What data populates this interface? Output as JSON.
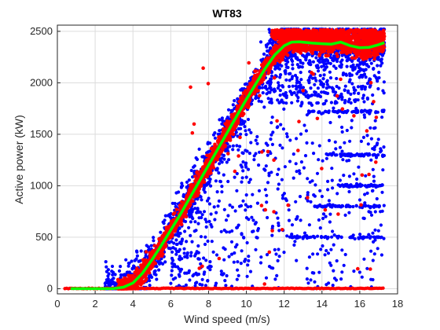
{
  "chart_data": {
    "type": "scatter",
    "title": "WT83",
    "xlabel": "Wind speed (m/s)",
    "ylabel": "Active power (kW)",
    "xlim": [
      0,
      18
    ],
    "ylim": [
      -50,
      2560
    ],
    "xticks": [
      0,
      2,
      4,
      6,
      8,
      10,
      12,
      14,
      16,
      18
    ],
    "yticks": [
      0,
      500,
      1000,
      1500,
      2000,
      2500
    ],
    "grid": true,
    "colors": {
      "blue": "#0000ff",
      "red": "#ff0000",
      "green": "#00ff00"
    },
    "fitted_curve": [
      [
        0.7,
        0
      ],
      [
        2,
        0
      ],
      [
        3,
        2
      ],
      [
        3.5,
        15
      ],
      [
        4,
        55
      ],
      [
        4.5,
        150
      ],
      [
        5,
        280
      ],
      [
        5.5,
        420
      ],
      [
        6,
        570
      ],
      [
        6.5,
        720
      ],
      [
        7,
        880
      ],
      [
        7.5,
        1040
      ],
      [
        8,
        1200
      ],
      [
        8.5,
        1360
      ],
      [
        9,
        1520
      ],
      [
        9.5,
        1680
      ],
      [
        10,
        1840
      ],
      [
        10.5,
        1990
      ],
      [
        11,
        2140
      ],
      [
        11.5,
        2270
      ],
      [
        12,
        2360
      ],
      [
        12.4,
        2395
      ],
      [
        12.8,
        2398
      ],
      [
        13.5,
        2385
      ],
      [
        14,
        2380
      ],
      [
        14.5,
        2375
      ],
      [
        15,
        2395
      ],
      [
        15.5,
        2360
      ],
      [
        16,
        2340
      ],
      [
        16.5,
        2345
      ],
      [
        17,
        2370
      ],
      [
        17.3,
        2390
      ]
    ]
  }
}
